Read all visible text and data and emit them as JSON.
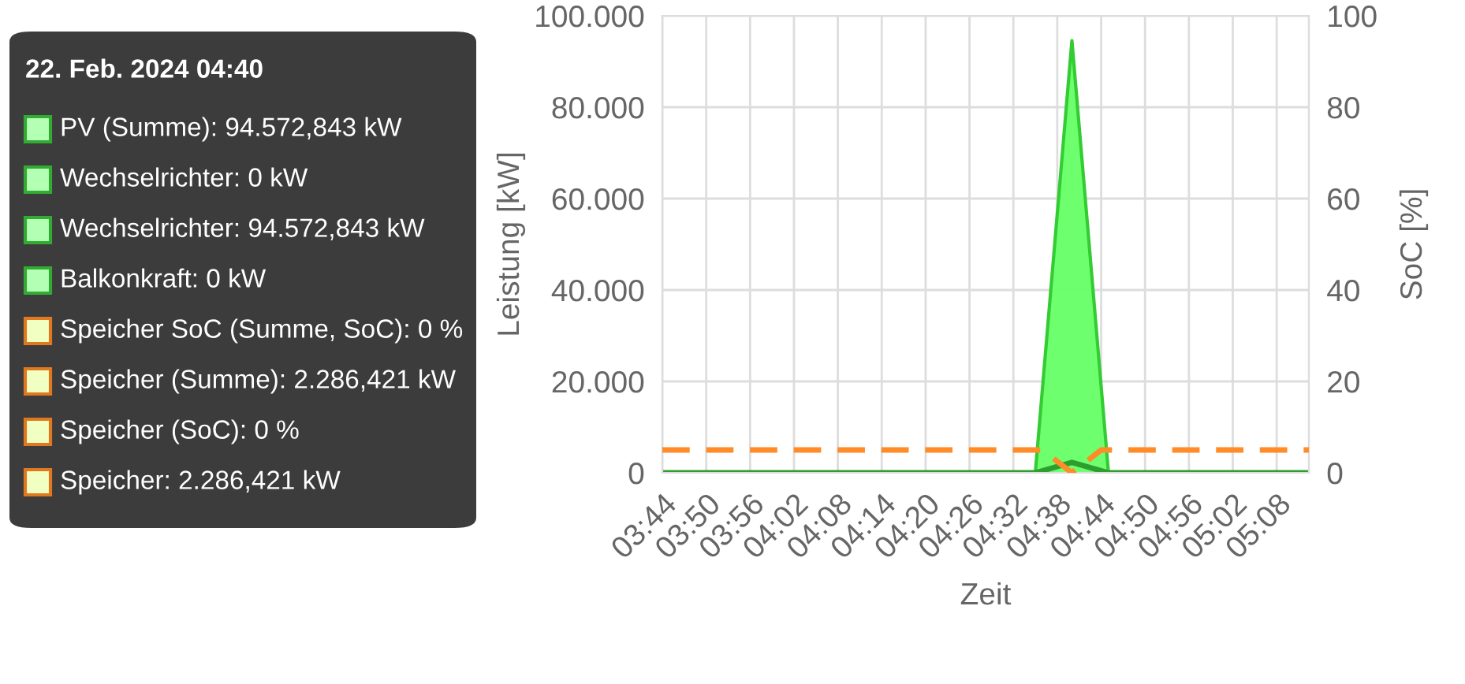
{
  "chart_data": {
    "type": "area",
    "xlabel": "Zeit",
    "ylabel": "Leistung [kW]",
    "y2label": "SoC [%]",
    "xlim": [
      3.7333,
      5.2067
    ],
    "xticks": [
      {
        "value": 3.7333,
        "label": "03:44"
      },
      {
        "value": 3.8333,
        "label": "03:50"
      },
      {
        "value": 3.9333,
        "label": "03:56"
      },
      {
        "value": 4.0333,
        "label": "04:02"
      },
      {
        "value": 4.1333,
        "label": "04:08"
      },
      {
        "value": 4.2333,
        "label": "04:14"
      },
      {
        "value": 4.3333,
        "label": "04:20"
      },
      {
        "value": 4.4333,
        "label": "04:26"
      },
      {
        "value": 4.5333,
        "label": "04:32"
      },
      {
        "value": 4.6333,
        "label": "04:38"
      },
      {
        "value": 4.7333,
        "label": "04:44"
      },
      {
        "value": 4.8333,
        "label": "04:50"
      },
      {
        "value": 4.9333,
        "label": "04:56"
      },
      {
        "value": 5.0333,
        "label": "05:02"
      },
      {
        "value": 5.1333,
        "label": "05:08"
      }
    ],
    "ylim": [
      0,
      100000
    ],
    "yticks": [
      {
        "value": 0,
        "label": "0"
      },
      {
        "value": 20000,
        "label": "20.000"
      },
      {
        "value": 40000,
        "label": "40.000"
      },
      {
        "value": 60000,
        "label": "60.000"
      },
      {
        "value": 80000,
        "label": "80.000"
      },
      {
        "value": 100000,
        "label": "100.000"
      }
    ],
    "y2lim": [
      0,
      100
    ],
    "y2ticks": [
      0,
      20,
      40,
      60,
      80,
      100
    ],
    "grid": true,
    "series": [
      {
        "color": "#33cc33",
        "x": [
          3.7333,
          4.5833,
          4.6667,
          4.75,
          5.2067
        ],
        "values": [
          0,
          0,
          94572.843,
          0,
          0
        ]
      },
      {
        "type": "line",
        "color": "#2e9e2e",
        "x": [
          3.7333,
          4.5833,
          4.6667,
          4.75,
          5.2067
        ],
        "values": [
          0,
          0,
          2286.421,
          0,
          0
        ]
      },
      {
        "type": "line",
        "axis": "y2",
        "color": "#ff8c28",
        "line_style": "dashed",
        "x": [
          3.7333,
          4.6,
          4.6667,
          4.7333,
          5.2067
        ],
        "values": [
          5,
          5,
          0,
          5,
          5
        ]
      }
    ],
    "annotations": [
      "22. Feb. 2024 04:40",
      "PV (Summe): 94.572,843 kW",
      "Wechselrichter: 0 kW",
      "Wechselrichter: 94.572,843 kW",
      "Balkonkraft: 0 kW",
      "Speicher SoC (Summe, SoC): 0 %",
      "Speicher (Summe): 2.286,421 kW",
      "Speicher (SoC): 0 %",
      "Speicher: 2.286,421 kW"
    ]
  }
}
